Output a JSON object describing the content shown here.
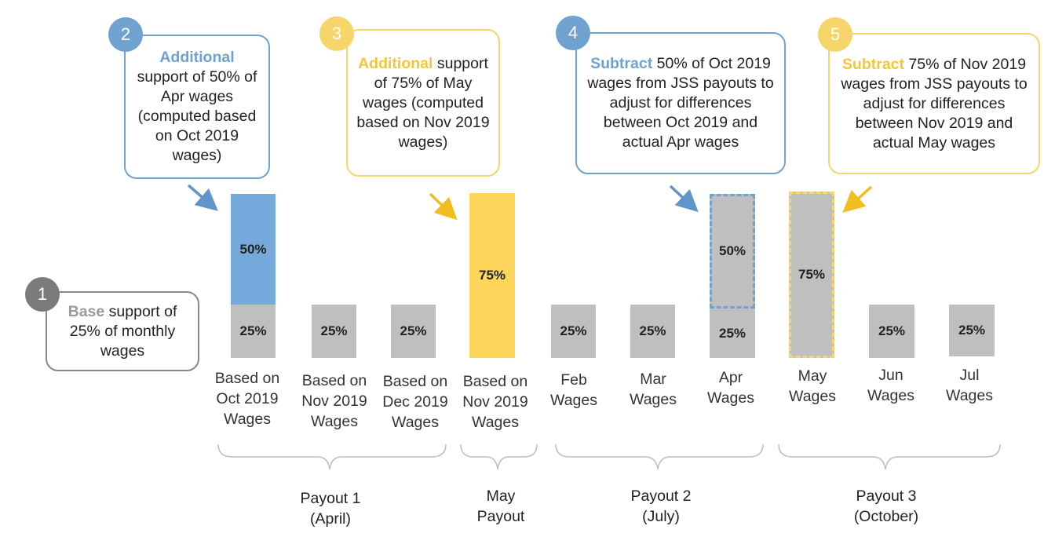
{
  "callouts": [
    {
      "num": "2",
      "highlight": "Additional",
      "text": "support of 50% of Apr wages (computed based on Oct 2019 wages)",
      "color": "#6fa2cf"
    },
    {
      "num": "3",
      "highlight": "Additional",
      "text": "support of 75% of May wages (computed based on Nov 2019 wages)",
      "color": "#f6d56a"
    },
    {
      "num": "4",
      "highlight": "Subtract",
      "text": "50% of Oct 2019 wages from JSS payouts to adjust for differences between Oct 2019 and actual Apr wages",
      "color": "#6fa2cf"
    },
    {
      "num": "5",
      "highlight": "Subtract",
      "text": "75% of Nov 2019 wages from JSS payouts to adjust for differences between Nov 2019 and actual May wages",
      "color": "#f6d56a"
    },
    {
      "num": "1",
      "highlight": "Base",
      "text": "support of 25% of monthly wages",
      "color": "#7b7b7b"
    }
  ],
  "bars": [
    {
      "base": "25%",
      "top": "50%"
    },
    {
      "base": "25%"
    },
    {
      "base": "25%"
    },
    {
      "top": "75%"
    },
    {
      "base": "25%"
    },
    {
      "base": "25%"
    },
    {
      "base": "25%",
      "top": "50%"
    },
    {
      "top": "75%"
    },
    {
      "base": "25%"
    },
    {
      "base": "25%"
    }
  ],
  "categories": [
    [
      "Based on",
      "Oct 2019",
      "Wages"
    ],
    [
      "Based on",
      "Nov 2019",
      "Wages"
    ],
    [
      "Based on",
      "Dec 2019",
      "Wages"
    ],
    [
      "Based on",
      "Nov 2019",
      "Wages"
    ],
    [
      "Feb",
      "Wages"
    ],
    [
      "Mar",
      "Wages"
    ],
    [
      "Apr",
      "Wages"
    ],
    [
      "May",
      "Wages"
    ],
    [
      "Jun",
      "Wages"
    ],
    [
      "Jul",
      "Wages"
    ]
  ],
  "payouts": [
    [
      "Payout 1",
      "(April)"
    ],
    [
      "May",
      "Payout"
    ],
    [
      "Payout 2",
      "(July)"
    ],
    [
      "Payout 3",
      "(October)"
    ]
  ]
}
